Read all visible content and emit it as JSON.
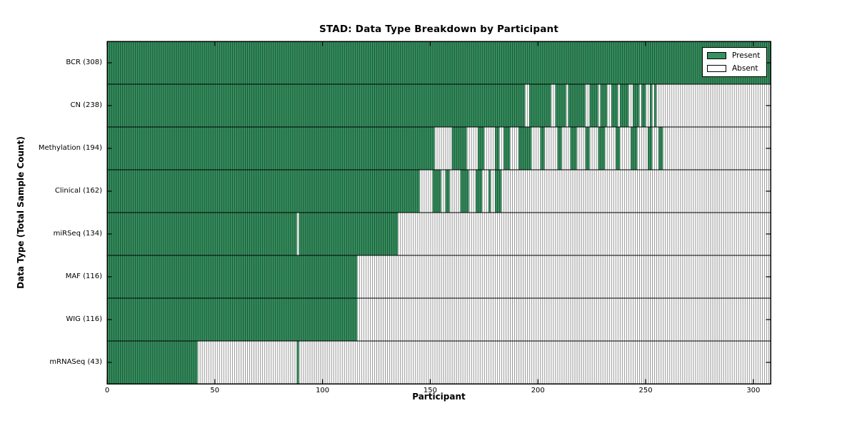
{
  "chart_data": {
    "type": "heatmap",
    "title": "STAD: Data Type Breakdown by Participant",
    "xlabel": "Participant",
    "ylabel": "Data Type (Total Sample Count)",
    "xlim": [
      0,
      308
    ],
    "xticks": [
      0,
      50,
      100,
      150,
      200,
      250,
      300
    ],
    "grid": false,
    "legend": {
      "position": "upper-right",
      "entries": [
        {
          "label": "Present",
          "color": "#35915f"
        },
        {
          "label": "Absent",
          "color": "#ffffff"
        }
      ]
    },
    "colors": {
      "present": "#35915f",
      "absent": "#ffffff",
      "cell_edge": "rgba(0,0,0,0.42)",
      "row_separator": "#000000",
      "axis": "#000000"
    },
    "rows": [
      {
        "label": "BCR (308)",
        "name": "BCR",
        "total": 308,
        "present_segments": [
          [
            0,
            308
          ]
        ]
      },
      {
        "label": "CN (238)",
        "name": "CN",
        "total": 238,
        "present_segments": [
          [
            0,
            194
          ],
          [
            196,
            206
          ],
          [
            208,
            213
          ],
          [
            214,
            222
          ],
          [
            224,
            228
          ],
          [
            229,
            232
          ],
          [
            234,
            237
          ],
          [
            238,
            242
          ],
          [
            244,
            247
          ],
          [
            248,
            250
          ],
          [
            252,
            253
          ],
          [
            254,
            255
          ]
        ]
      },
      {
        "label": "Methylation (194)",
        "name": "Methylation",
        "total": 194,
        "present_segments": [
          [
            0,
            152
          ],
          [
            160,
            167
          ],
          [
            172,
            175
          ],
          [
            180,
            182
          ],
          [
            184,
            187
          ],
          [
            191,
            197
          ],
          [
            201,
            203
          ],
          [
            209,
            211
          ],
          [
            215,
            218
          ],
          [
            222,
            224
          ],
          [
            228,
            231
          ],
          [
            236,
            238
          ],
          [
            243,
            246
          ],
          [
            251,
            253
          ],
          [
            256,
            258
          ]
        ]
      },
      {
        "label": "Clinical (162)",
        "name": "Clinical",
        "total": 162,
        "present_segments": [
          [
            0,
            145
          ],
          [
            151,
            155
          ],
          [
            157,
            159
          ],
          [
            164,
            168
          ],
          [
            171,
            174
          ],
          [
            177,
            178
          ],
          [
            180,
            183
          ]
        ]
      },
      {
        "label": "miRSeq (134)",
        "name": "miRSeq",
        "total": 134,
        "present_segments": [
          [
            0,
            88
          ],
          [
            89,
            135
          ]
        ]
      },
      {
        "label": "MAF (116)",
        "name": "MAF",
        "total": 116,
        "present_segments": [
          [
            0,
            116
          ]
        ]
      },
      {
        "label": "WIG (116)",
        "name": "WIG",
        "total": 116,
        "present_segments": [
          [
            0,
            116
          ]
        ]
      },
      {
        "label": "mRNASeq (43)",
        "name": "mRNASeq",
        "total": 43,
        "present_segments": [
          [
            0,
            42
          ],
          [
            88,
            89
          ]
        ]
      }
    ]
  }
}
